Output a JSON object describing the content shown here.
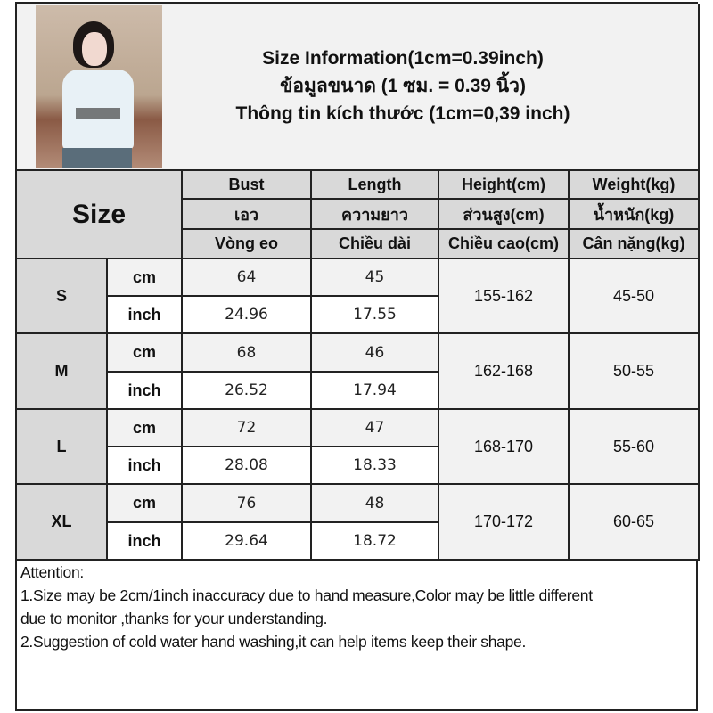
{
  "title": {
    "line_en": "Size Information(1cm=0.39inch)",
    "line_th": "ข้อมูลขนาด (1 ซม. = 0.39 นิ้ว)",
    "line_vi": "Thông tin kích thước (1cm=0,39 inch)"
  },
  "size_header": "Size",
  "columns": [
    {
      "en": "Bust",
      "th": "เอว",
      "vi": "Vòng eo"
    },
    {
      "en": "Length",
      "th": "ความยาว",
      "vi": "Chiều dài"
    },
    {
      "en": "Height(cm)",
      "th": "ส่วนสูง(cm)",
      "vi": "Chiều cao(cm)"
    },
    {
      "en": "Weight(kg)",
      "th": "น้ำหนัก(kg)",
      "vi": "Cân nặng(kg)"
    }
  ],
  "units": {
    "cm": "cm",
    "inch": "inch"
  },
  "rows": [
    {
      "size": "S",
      "bust_cm": "64",
      "length_cm": "45",
      "bust_in": "24.96",
      "length_in": "17.55",
      "height": "155-162",
      "weight": "45-50"
    },
    {
      "size": "M",
      "bust_cm": "68",
      "length_cm": "46",
      "bust_in": "26.52",
      "length_in": "17.94",
      "height": "162-168",
      "weight": "50-55"
    },
    {
      "size": "L",
      "bust_cm": "72",
      "length_cm": "47",
      "bust_in": "28.08",
      "length_in": "18.33",
      "height": "168-170",
      "weight": "55-60"
    },
    {
      "size": "XL",
      "bust_cm": "76",
      "length_cm": "48",
      "bust_in": "29.64",
      "length_in": "18.72",
      "height": "170-172",
      "weight": "60-65"
    }
  ],
  "attention": {
    "heading": "Attention:",
    "line1a": "1.Size may be 2cm/1inch inaccuracy due to hand measure,Color may be little different",
    "line1b": "due to monitor ,thanks for your understanding.",
    "line2": "2.Suggestion of cold water hand washing,it can help items keep their shape."
  }
}
